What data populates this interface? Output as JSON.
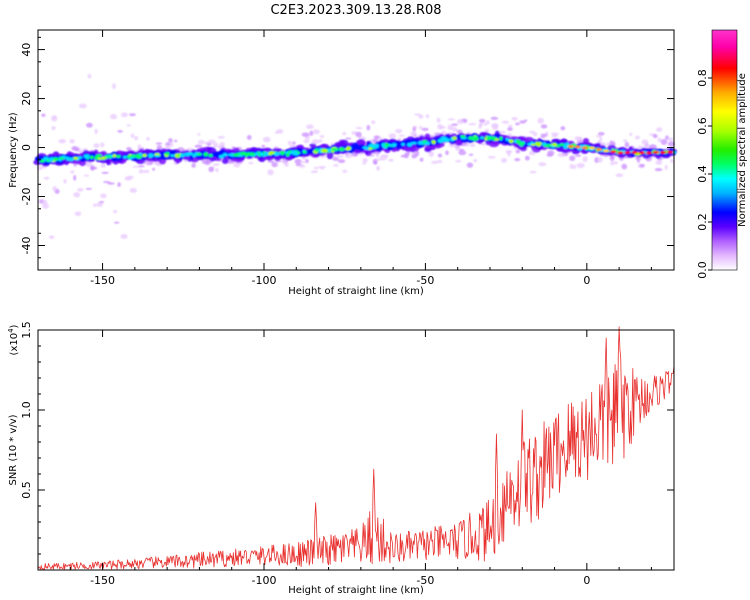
{
  "title": "C2E3.2023.309.13.28.R08",
  "chart_data": [
    {
      "type": "heatmap",
      "xlabel": "Height of straight line (km)",
      "ylabel": "Frequency (Hz)",
      "xlim": [
        -170,
        27
      ],
      "ylim": [
        -50,
        48
      ],
      "x_ticks": [
        -150,
        -100,
        -50,
        0
      ],
      "y_ticks": [
        -40,
        -20,
        0,
        20,
        40
      ],
      "ridge_frequency": {
        "x": [
          -170,
          -150,
          -130,
          -110,
          -90,
          -70,
          -50,
          -40,
          -30,
          -20,
          -10,
          0,
          10,
          20,
          27
        ],
        "y": [
          -5,
          -4,
          -3,
          -3,
          -2,
          0,
          2,
          4,
          4,
          2,
          1,
          0,
          -2,
          -2,
          -2
        ]
      },
      "colorbar": {
        "label": "Normalized spectral amplitude",
        "range": [
          0.0,
          1.0
        ],
        "ticks": [
          "0.0",
          "0.2",
          "0.4",
          "0.6",
          "0.8"
        ],
        "colormap": [
          "#ffffff",
          "#e4b8ff",
          "#b060ff",
          "#5a00ff",
          "#0000ff",
          "#00b4ff",
          "#00ffff",
          "#00ff66",
          "#22ee00",
          "#aaff00",
          "#ffff00",
          "#ffaa00",
          "#ff0000",
          "#ff00aa",
          "#ff33cc"
        ]
      }
    },
    {
      "type": "line",
      "xlabel": "Height of straight line (km)",
      "ylabel": "SNR (10 * v/v)",
      "scale_label": "(x10",
      "scale_exponent": "4",
      "scale_close": ")",
      "xlim": [
        -170,
        27
      ],
      "ylim": [
        0,
        1.5
      ],
      "x_ticks": [
        -150,
        -100,
        -50,
        0
      ],
      "y_ticks": [
        "0.5",
        "1.0",
        "1.5"
      ],
      "color": "#e8302e",
      "envelope": {
        "x": [
          -170,
          -150,
          -130,
          -120,
          -100,
          -90,
          -80,
          -70,
          -66,
          -60,
          -50,
          -40,
          -30,
          -25,
          -20,
          -15,
          -10,
          -5,
          0,
          5,
          10,
          15,
          20,
          27
        ],
        "mean": [
          0.02,
          0.03,
          0.05,
          0.06,
          0.09,
          0.1,
          0.12,
          0.15,
          0.22,
          0.13,
          0.16,
          0.18,
          0.25,
          0.45,
          0.55,
          0.6,
          0.72,
          0.8,
          0.85,
          0.95,
          1.0,
          1.05,
          1.1,
          1.2
        ],
        "amplitude": [
          0.02,
          0.025,
          0.04,
          0.05,
          0.06,
          0.08,
          0.1,
          0.12,
          0.2,
          0.1,
          0.1,
          0.12,
          0.2,
          0.28,
          0.3,
          0.3,
          0.28,
          0.3,
          0.3,
          0.35,
          0.4,
          0.2,
          0.12,
          0.08
        ]
      },
      "peaks": [
        {
          "x": -84,
          "y": 0.42
        },
        {
          "x": -66,
          "y": 0.63
        },
        {
          "x": -28,
          "y": 0.85
        },
        {
          "x": -20,
          "y": 1.0
        },
        {
          "x": 6,
          "y": 1.45
        },
        {
          "x": 10,
          "y": 1.55
        }
      ]
    }
  ]
}
